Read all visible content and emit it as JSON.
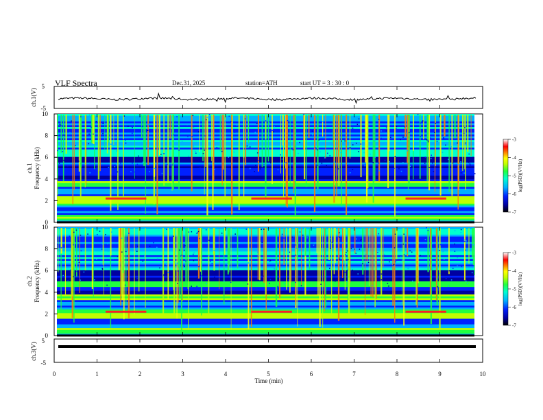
{
  "header": {
    "title": "VLF  Spectra",
    "date": "Dec.31, 2025",
    "station": "station=ATH",
    "start": "start  UT  =   3  : 30 : 0"
  },
  "chart_data": [
    {
      "type": "line",
      "name": "ch1-waveform",
      "ylabel": "ch.1(V)",
      "ylim": [
        -5,
        5
      ],
      "yticks": [
        "5",
        "-5"
      ],
      "xlim": [
        0,
        10
      ]
    },
    {
      "type": "heatmap",
      "name": "ch1-spectrogram",
      "ylabel_channel": "ch.1",
      "ylabel": "Frequency  (kHz)",
      "ylim": [
        0,
        10
      ],
      "yticks": [
        "0",
        "2",
        "4",
        "6",
        "8",
        "10"
      ],
      "xlim": [
        0,
        10
      ],
      "strong_bands_khz": [
        0.5,
        1.8,
        2.2,
        3.5
      ],
      "colorbar": {
        "label": "log(PSD)(V²/Hz)",
        "range": [
          -7,
          -3
        ],
        "ticks": [
          "-3",
          "-4",
          "-5",
          "-6",
          "-7"
        ]
      }
    },
    {
      "type": "heatmap",
      "name": "ch2-spectrogram",
      "ylabel_channel": "ch.2",
      "ylabel": "Frequency  (kHz)",
      "ylim": [
        0,
        10
      ],
      "yticks": [
        "0",
        "2",
        "4",
        "6",
        "8",
        "10"
      ],
      "xlim": [
        0,
        10
      ],
      "strong_bands_khz": [
        0.5,
        1.8,
        2.2,
        3.5,
        4.8
      ],
      "colorbar": {
        "label": "log(PSD)(V²/Hz)",
        "range": [
          -7,
          -3
        ],
        "ticks": [
          "-3",
          "-4",
          "-5",
          "-6",
          "-7"
        ]
      }
    },
    {
      "type": "line",
      "name": "ch3-waveform",
      "ylabel": "ch.3(V)",
      "ylim": [
        -5,
        5
      ],
      "yticks": [
        "5",
        "-5"
      ],
      "xlim": [
        0,
        10
      ],
      "xlabel": "Time  (min)",
      "xticks": [
        "0",
        "1",
        "2",
        "3",
        "4",
        "5",
        "6",
        "7",
        "8",
        "9",
        "10"
      ]
    }
  ],
  "colors": {
    "scale": [
      "#000000",
      "#0000a0",
      "#0020ff",
      "#00b0ff",
      "#00ffd0",
      "#20ff40",
      "#c0ff00",
      "#ffff00",
      "#ff8000",
      "#ff0000",
      "#ffffff"
    ]
  }
}
